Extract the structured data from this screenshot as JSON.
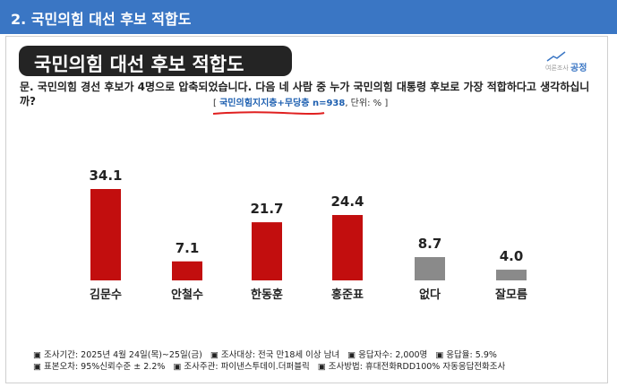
{
  "header": {
    "title": "2. 국민의힘 대선 후보 적합도"
  },
  "card": {
    "title": "국민의힘 대선 후보 적합도",
    "question": "문. 국민의힘 경선 후보가 4명으로 압축되었습니다. 다음 네 사람 중 누가 국민의힘 대통령 후보로 가장 적합하다고 생각하십니까?",
    "sample_open": "[ ",
    "sample_highlight": "국민의힘지지층+무당층 n=938",
    "sample_rest": ", 단위: % ]"
  },
  "logo": {
    "small": "여론조사",
    "big": "공정"
  },
  "chart_data": {
    "type": "bar",
    "categories": [
      "김문수",
      "안철수",
      "한동훈",
      "홍준표",
      "없다",
      "잘모름"
    ],
    "values": [
      34.1,
      7.1,
      21.7,
      24.4,
      8.7,
      4.0
    ],
    "value_labels": [
      "34.1",
      "7.1",
      "21.7",
      "24.4",
      "8.7",
      "4.0"
    ],
    "colors": [
      "#c20e0e",
      "#c20e0e",
      "#c20e0e",
      "#c20e0e",
      "#8a8a8a",
      "#8a8a8a"
    ],
    "ylim": [
      0,
      34.1
    ],
    "title": "",
    "xlabel": "",
    "ylabel": ""
  },
  "footer": {
    "line1": [
      "▣ 조사기간: 2025년 4월 24일(목)~25일(금)",
      "▣ 조사대상: 전국 만18세 이상 남녀",
      "▣ 응답자수: 2,000명",
      "▣ 응답율: 5.9%"
    ],
    "line2": [
      "▣ 표본오차: 95%신뢰수준 ± 2.2%",
      "▣ 조사주관: 파이낸스투데이.더퍼블릭",
      "▣ 조사방법: 휴대전화RDD100% 자동응답전화조사"
    ]
  }
}
